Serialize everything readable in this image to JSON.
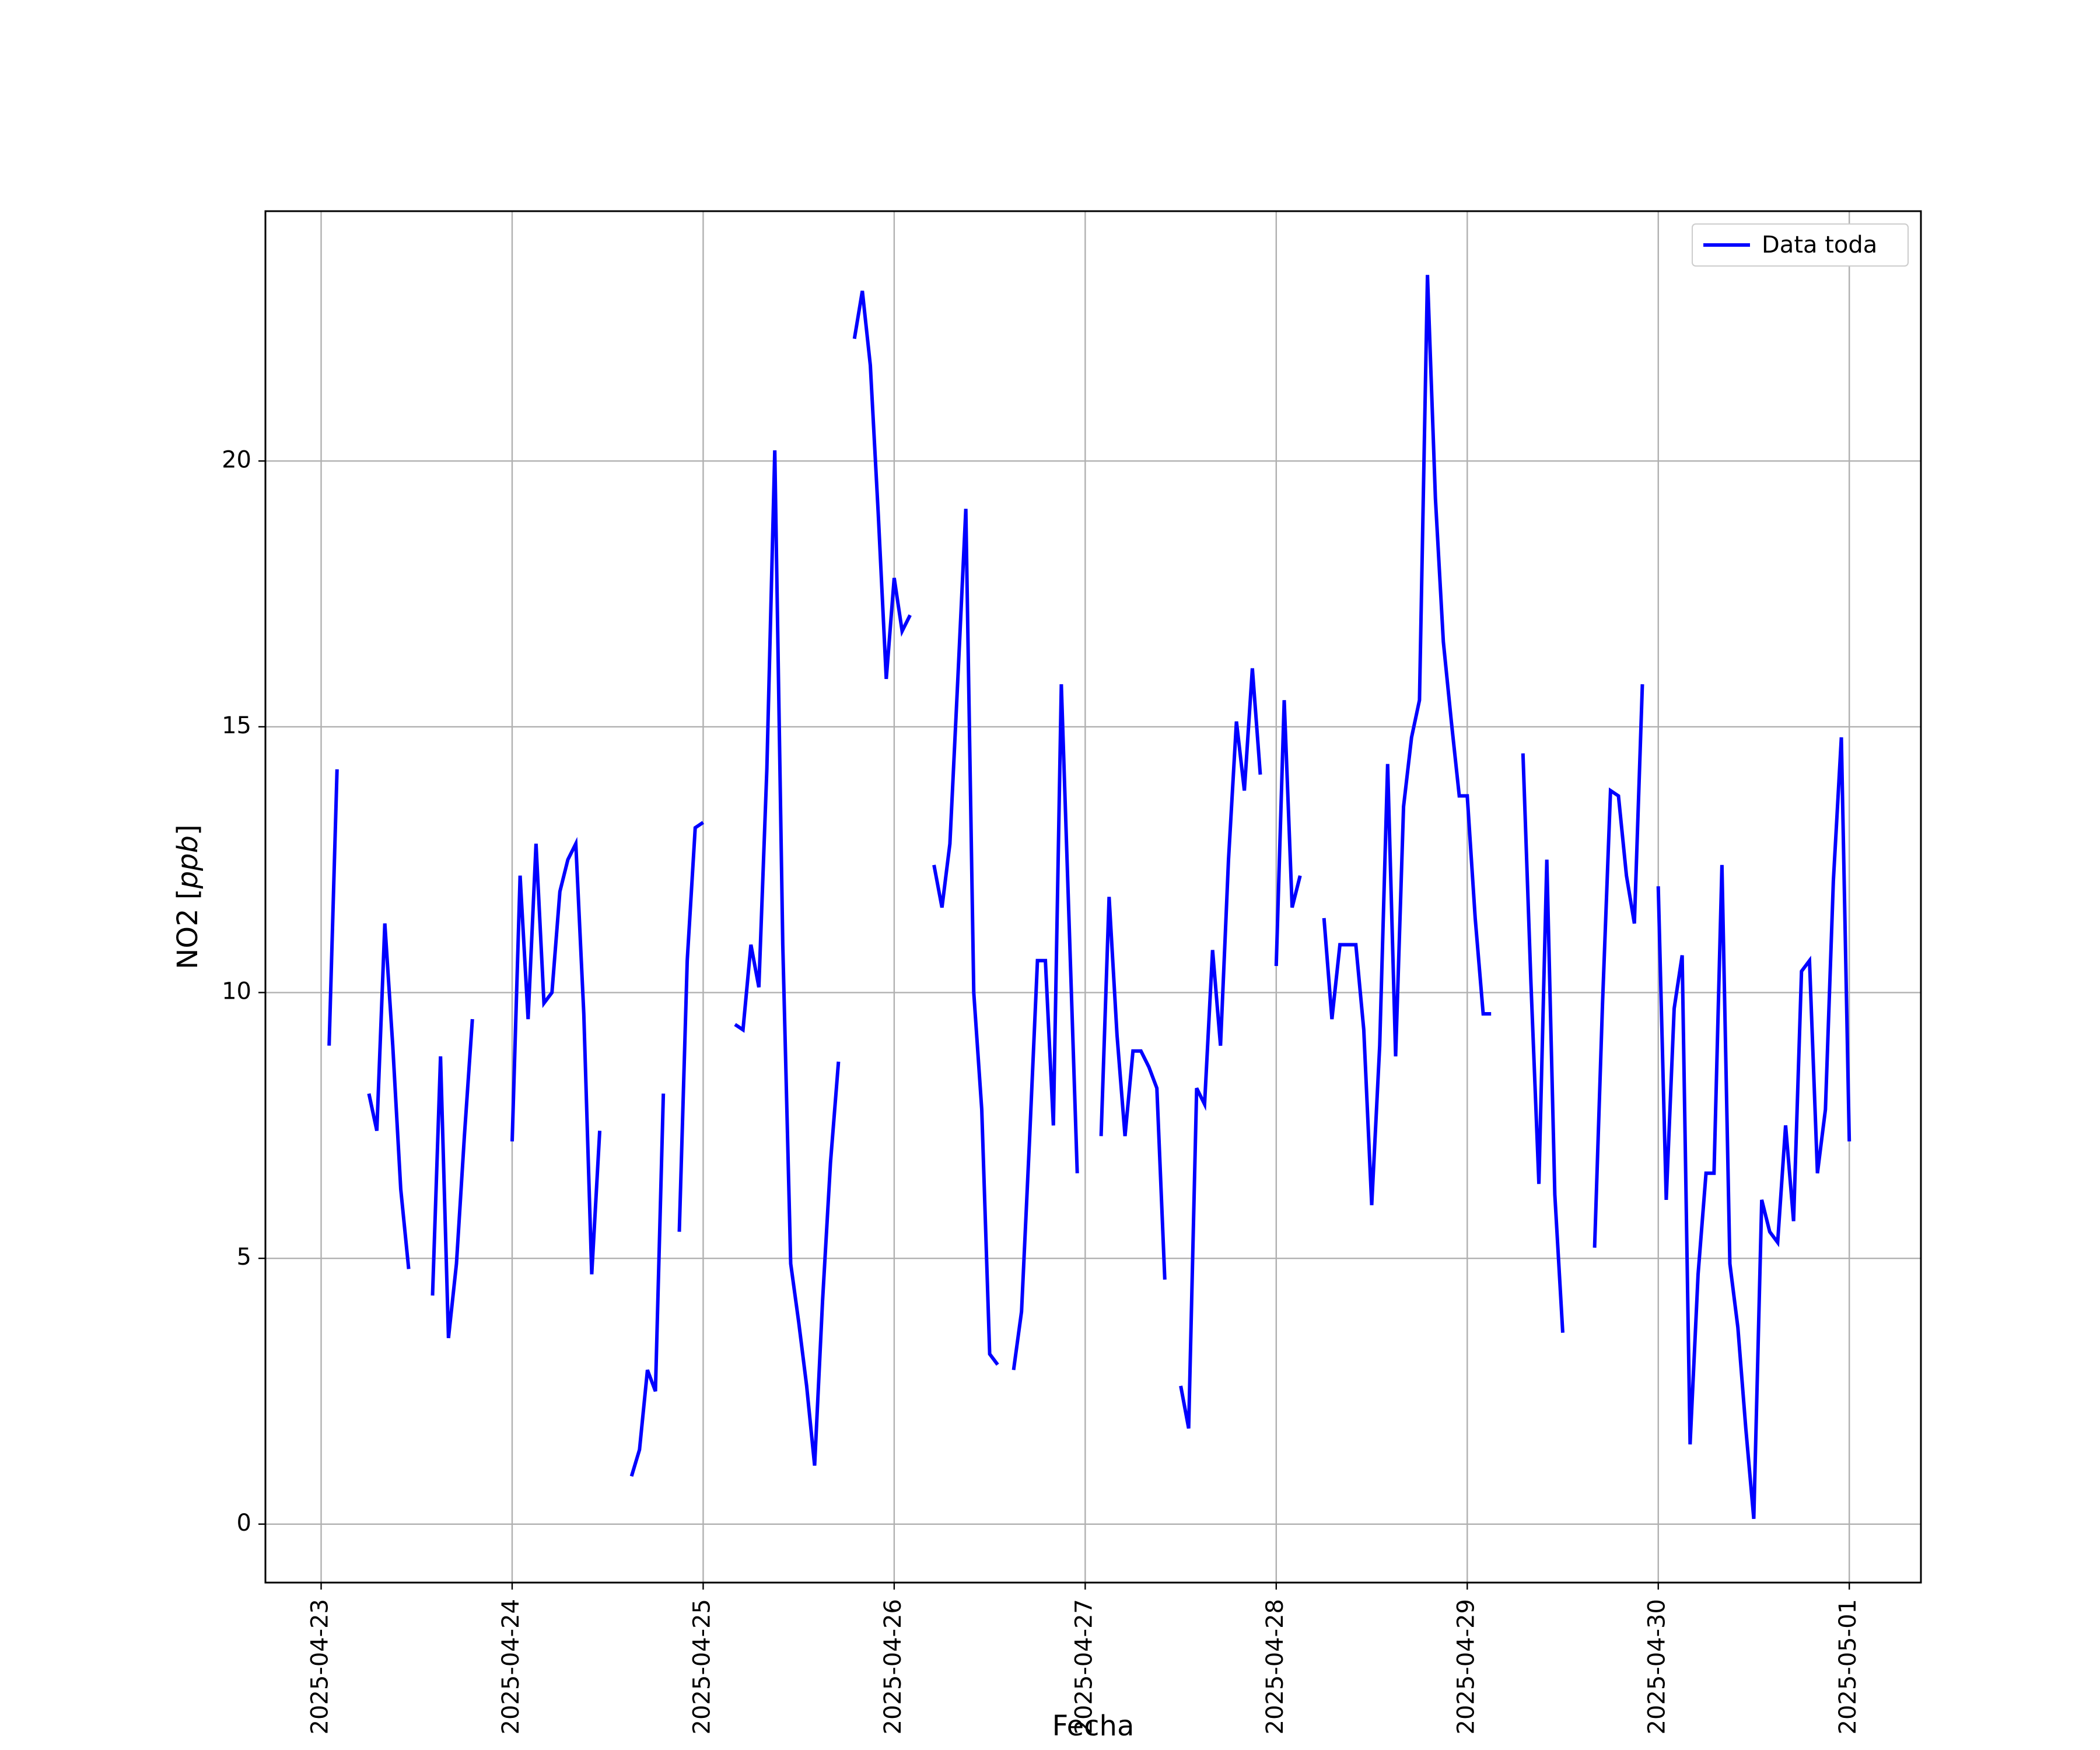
{
  "chart_data": {
    "type": "line",
    "xlabel": "Fecha",
    "ylabel_main": "NO2 [",
    "ylabel_unit": "ppb",
    "ylabel_end": "]",
    "xlim": [
      "2025-04-22 17:00",
      "2025-05-01 09:00"
    ],
    "ylim": [
      -1.1,
      24.7
    ],
    "x_ticks": [
      "2025-04-23",
      "2025-04-24",
      "2025-04-25",
      "2025-04-26",
      "2025-04-27",
      "2025-04-28",
      "2025-04-29",
      "2025-04-30",
      "2025-05-01"
    ],
    "y_ticks": [
      0,
      5,
      10,
      15,
      20
    ],
    "y_tick_labels": [
      "0",
      "5",
      "10",
      "15",
      "20"
    ],
    "grid": true,
    "legend_position": "top-right",
    "series": [
      {
        "name": "Data toda",
        "color": "#0000ff",
        "segments": [
          [
            [
              "2025-04-23 01:00",
              9.0
            ],
            [
              "2025-04-23 02:00",
              14.2
            ]
          ],
          [
            [
              "2025-04-23 06:00",
              8.1
            ],
            [
              "2025-04-23 07:00",
              7.4
            ],
            [
              "2025-04-23 08:00",
              11.3
            ],
            [
              "2025-04-23 09:00",
              9.0
            ],
            [
              "2025-04-23 10:00",
              6.3
            ],
            [
              "2025-04-23 11:00",
              4.8
            ]
          ],
          [
            [
              "2025-04-23 14:00",
              4.3
            ],
            [
              "2025-04-23 15:00",
              8.8
            ],
            [
              "2025-04-23 16:00",
              3.5
            ],
            [
              "2025-04-23 17:00",
              4.9
            ],
            [
              "2025-04-23 18:00",
              7.3
            ],
            [
              "2025-04-23 19:00",
              9.5
            ]
          ],
          [
            [
              "2025-04-24 00:00",
              7.2
            ],
            [
              "2025-04-24 01:00",
              12.2
            ],
            [
              "2025-04-24 02:00",
              9.5
            ],
            [
              "2025-04-24 03:00",
              12.8
            ],
            [
              "2025-04-24 04:00",
              9.8
            ],
            [
              "2025-04-24 05:00",
              10.0
            ],
            [
              "2025-04-24 06:00",
              11.9
            ],
            [
              "2025-04-24 07:00",
              12.5
            ],
            [
              "2025-04-24 08:00",
              12.8
            ],
            [
              "2025-04-24 09:00",
              9.6
            ],
            [
              "2025-04-24 10:00",
              4.7
            ],
            [
              "2025-04-24 11:00",
              7.4
            ]
          ],
          [
            [
              "2025-04-24 15:00",
              0.9
            ],
            [
              "2025-04-24 16:00",
              1.4
            ],
            [
              "2025-04-24 17:00",
              2.9
            ],
            [
              "2025-04-24 18:00",
              2.5
            ],
            [
              "2025-04-24 19:00",
              8.1
            ]
          ],
          [
            [
              "2025-04-24 21:00",
              5.5
            ],
            [
              "2025-04-24 22:00",
              10.6
            ],
            [
              "2025-04-24 23:00",
              13.1
            ],
            [
              "2025-04-25 00:00",
              13.2
            ]
          ],
          [
            [
              "2025-04-25 04:00",
              9.4
            ],
            [
              "2025-04-25 05:00",
              9.3
            ],
            [
              "2025-04-25 06:00",
              10.9
            ],
            [
              "2025-04-25 07:00",
              10.1
            ],
            [
              "2025-04-25 08:00",
              14.2
            ],
            [
              "2025-04-25 09:00",
              20.2
            ],
            [
              "2025-04-25 10:00",
              10.9
            ],
            [
              "2025-04-25 11:00",
              4.9
            ],
            [
              "2025-04-25 12:00",
              3.8
            ],
            [
              "2025-04-25 13:00",
              2.6
            ],
            [
              "2025-04-25 14:00",
              1.1
            ],
            [
              "2025-04-25 15:00",
              4.2
            ],
            [
              "2025-04-25 16:00",
              6.8
            ],
            [
              "2025-04-25 17:00",
              8.7
            ]
          ],
          [
            [
              "2025-04-25 19:00",
              22.3
            ],
            [
              "2025-04-25 20:00",
              23.2
            ],
            [
              "2025-04-25 21:00",
              21.8
            ],
            [
              "2025-04-25 22:00",
              19.0
            ],
            [
              "2025-04-25 23:00",
              15.9
            ],
            [
              "2025-04-26 00:00",
              17.8
            ],
            [
              "2025-04-26 01:00",
              16.8
            ],
            [
              "2025-04-26 02:00",
              17.1
            ]
          ],
          [
            [
              "2025-04-26 05:00",
              12.4
            ],
            [
              "2025-04-26 06:00",
              11.6
            ],
            [
              "2025-04-26 07:00",
              12.8
            ],
            [
              "2025-04-26 08:00",
              15.9
            ],
            [
              "2025-04-26 09:00",
              19.1
            ],
            [
              "2025-04-26 10:00",
              10.0
            ],
            [
              "2025-04-26 11:00",
              7.8
            ],
            [
              "2025-04-26 12:00",
              3.2
            ],
            [
              "2025-04-26 13:00",
              3.0
            ]
          ],
          [
            [
              "2025-04-26 15:00",
              2.9
            ],
            [
              "2025-04-26 16:00",
              4.0
            ],
            [
              "2025-04-26 17:00",
              7.2
            ],
            [
              "2025-04-26 18:00",
              10.6
            ],
            [
              "2025-04-26 19:00",
              10.6
            ],
            [
              "2025-04-26 20:00",
              7.5
            ],
            [
              "2025-04-26 21:00",
              15.8
            ],
            [
              "2025-04-26 22:00",
              11.2
            ],
            [
              "2025-04-26 23:00",
              6.6
            ]
          ],
          [
            [
              "2025-04-27 02:00",
              7.3
            ],
            [
              "2025-04-27 03:00",
              11.8
            ],
            [
              "2025-04-27 04:00",
              9.2
            ],
            [
              "2025-04-27 05:00",
              7.3
            ],
            [
              "2025-04-27 06:00",
              8.9
            ],
            [
              "2025-04-27 07:00",
              8.9
            ],
            [
              "2025-04-27 08:00",
              8.6
            ],
            [
              "2025-04-27 09:00",
              8.2
            ],
            [
              "2025-04-27 10:00",
              4.6
            ]
          ],
          [
            [
              "2025-04-27 12:00",
              2.6
            ],
            [
              "2025-04-27 13:00",
              1.8
            ],
            [
              "2025-04-27 14:00",
              8.2
            ],
            [
              "2025-04-27 15:00",
              7.9
            ],
            [
              "2025-04-27 16:00",
              10.8
            ],
            [
              "2025-04-27 17:00",
              9.0
            ],
            [
              "2025-04-27 18:00",
              12.5
            ],
            [
              "2025-04-27 19:00",
              15.1
            ],
            [
              "2025-04-27 20:00",
              13.8
            ],
            [
              "2025-04-27 21:00",
              16.1
            ],
            [
              "2025-04-27 22:00",
              14.1
            ]
          ],
          [
            [
              "2025-04-28 00:00",
              10.5
            ],
            [
              "2025-04-28 01:00",
              15.5
            ],
            [
              "2025-04-28 02:00",
              11.6
            ],
            [
              "2025-04-28 03:00",
              12.2
            ]
          ],
          [
            [
              "2025-04-28 06:00",
              11.4
            ],
            [
              "2025-04-28 07:00",
              9.5
            ],
            [
              "2025-04-28 08:00",
              10.9
            ],
            [
              "2025-04-28 09:00",
              10.9
            ],
            [
              "2025-04-28 10:00",
              10.9
            ],
            [
              "2025-04-28 11:00",
              9.3
            ],
            [
              "2025-04-28 12:00",
              6.0
            ],
            [
              "2025-04-28 13:00",
              9.0
            ],
            [
              "2025-04-28 14:00",
              14.3
            ],
            [
              "2025-04-28 15:00",
              8.8
            ],
            [
              "2025-04-28 16:00",
              13.5
            ],
            [
              "2025-04-28 17:00",
              14.8
            ],
            [
              "2025-04-28 18:00",
              15.5
            ],
            [
              "2025-04-28 19:00",
              23.5
            ],
            [
              "2025-04-28 20:00",
              19.3
            ],
            [
              "2025-04-28 21:00",
              16.6
            ],
            [
              "2025-04-28 22:00",
              15.1
            ],
            [
              "2025-04-28 23:00",
              13.7
            ],
            [
              "2025-04-29 00:00",
              13.7
            ],
            [
              "2025-04-29 01:00",
              11.4
            ],
            [
              "2025-04-29 02:00",
              9.6
            ],
            [
              "2025-04-29 03:00",
              9.6
            ]
          ],
          [
            [
              "2025-04-29 07:00",
              14.5
            ],
            [
              "2025-04-29 08:00",
              10.2
            ],
            [
              "2025-04-29 09:00",
              6.4
            ],
            [
              "2025-04-29 10:00",
              12.5
            ],
            [
              "2025-04-29 11:00",
              6.2
            ],
            [
              "2025-04-29 12:00",
              3.6
            ]
          ],
          [
            [
              "2025-04-29 16:00",
              5.2
            ],
            [
              "2025-04-29 17:00",
              9.8
            ],
            [
              "2025-04-29 18:00",
              13.8
            ],
            [
              "2025-04-29 19:00",
              13.7
            ],
            [
              "2025-04-29 20:00",
              12.2
            ],
            [
              "2025-04-29 21:00",
              11.3
            ],
            [
              "2025-04-29 22:00",
              15.8
            ]
          ],
          [
            [
              "2025-04-30 00:00",
              12.0
            ],
            [
              "2025-04-30 01:00",
              6.1
            ],
            [
              "2025-04-30 02:00",
              9.7
            ],
            [
              "2025-04-30 03:00",
              10.7
            ],
            [
              "2025-04-30 04:00",
              1.5
            ],
            [
              "2025-04-30 05:00",
              4.7
            ],
            [
              "2025-04-30 06:00",
              6.6
            ],
            [
              "2025-04-30 07:00",
              6.6
            ],
            [
              "2025-04-30 08:00",
              12.4
            ],
            [
              "2025-04-30 09:00",
              4.9
            ],
            [
              "2025-04-30 10:00",
              3.7
            ],
            [
              "2025-04-30 11:00",
              1.8
            ],
            [
              "2025-04-30 12:00",
              0.1
            ],
            [
              "2025-04-30 13:00",
              6.1
            ],
            [
              "2025-04-30 14:00",
              5.5
            ],
            [
              "2025-04-30 15:00",
              5.3
            ],
            [
              "2025-04-30 16:00",
              7.5
            ],
            [
              "2025-04-30 17:00",
              5.7
            ],
            [
              "2025-04-30 18:00",
              10.4
            ],
            [
              "2025-04-30 19:00",
              10.6
            ],
            [
              "2025-04-30 20:00",
              6.6
            ],
            [
              "2025-04-30 21:00",
              7.8
            ],
            [
              "2025-04-30 22:00",
              12.1
            ],
            [
              "2025-04-30 23:00",
              14.8
            ],
            [
              "2025-05-01 00:00",
              7.2
            ]
          ]
        ]
      }
    ]
  }
}
